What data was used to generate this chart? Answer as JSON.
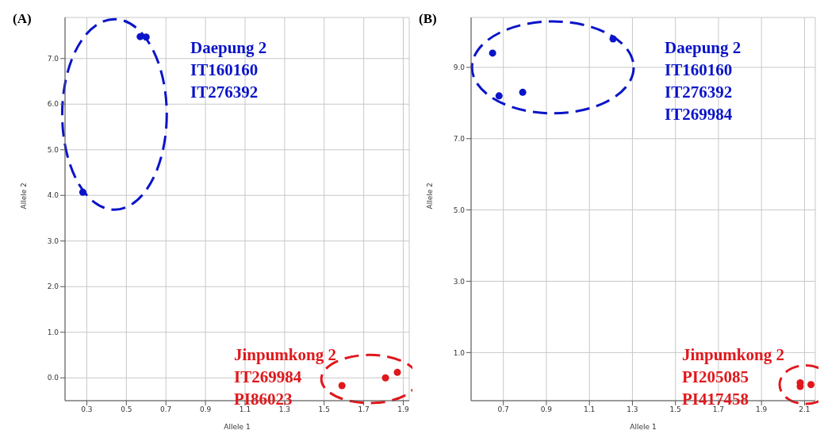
{
  "chart_data": [
    {
      "type": "scatter",
      "title": "(A)",
      "xlabel": "Allele 1",
      "ylabel": "Allele 2",
      "xlim": [
        0.19,
        1.93
      ],
      "ylim": [
        -0.5,
        7.9
      ],
      "xticks": [
        0.3,
        0.5,
        0.7,
        0.9,
        1.1,
        1.3,
        1.5,
        1.7,
        1.9
      ],
      "yticks": [
        {
          "value": 0,
          "label": "0.0"
        },
        {
          "value": 1,
          "label": "1.0"
        },
        {
          "value": 2,
          "label": "2.0"
        },
        {
          "value": 3,
          "label": "3.0"
        },
        {
          "value": 4,
          "label": "4.0"
        },
        {
          "value": 5,
          "label": "5.0"
        },
        {
          "value": 6,
          "label": "6.0"
        },
        {
          "value": 7,
          "label": "7.0"
        }
      ],
      "grid": true,
      "marker": "circle",
      "series": [
        {
          "color": "#0a14c8",
          "x": [
            0.28,
            0.57,
            0.6
          ],
          "values": [
            4.07,
            7.48,
            7.47
          ]
        },
        {
          "color": "#e0181c",
          "x": [
            1.59,
            1.81,
            1.87
          ],
          "values": [
            -0.17,
            0.0,
            0.12
          ]
        }
      ],
      "annotations": [
        "Daepung 2\nIT160160\nIT276392",
        "Jinpumkong 2\nIT269984\nPI86023"
      ]
    },
    {
      "type": "scatter",
      "title": "(B)",
      "xlabel": "Allele 1",
      "ylabel": "Allele 2",
      "xlim": [
        0.55,
        2.15
      ],
      "ylim": [
        -0.35,
        10.4
      ],
      "xticks": [
        0.7,
        0.9,
        1.1,
        1.3,
        1.5,
        1.7,
        1.9,
        2.1
      ],
      "yticks": [
        {
          "value": 1,
          "label": "1.0"
        },
        {
          "value": 3,
          "label": "3.0"
        },
        {
          "value": 5,
          "label": "5.0"
        },
        {
          "value": 7,
          "label": "7.0"
        },
        {
          "value": 9,
          "label": "9.0"
        }
      ],
      "grid": true,
      "marker": "circle",
      "series": [
        {
          "color": "#0a14c8",
          "x": [
            0.65,
            0.68,
            0.79,
            1.21
          ],
          "values": [
            9.4,
            8.2,
            8.3,
            9.8
          ]
        },
        {
          "color": "#e0181c",
          "x": [
            2.08,
            2.08,
            2.13
          ],
          "values": [
            0.15,
            0.05,
            0.1
          ]
        }
      ],
      "annotations": [
        "Daepung 2\nIT160160\nIT276392\nIT269984",
        "Jinpumkong 2\nPI205085\nPI417458"
      ]
    }
  ]
}
